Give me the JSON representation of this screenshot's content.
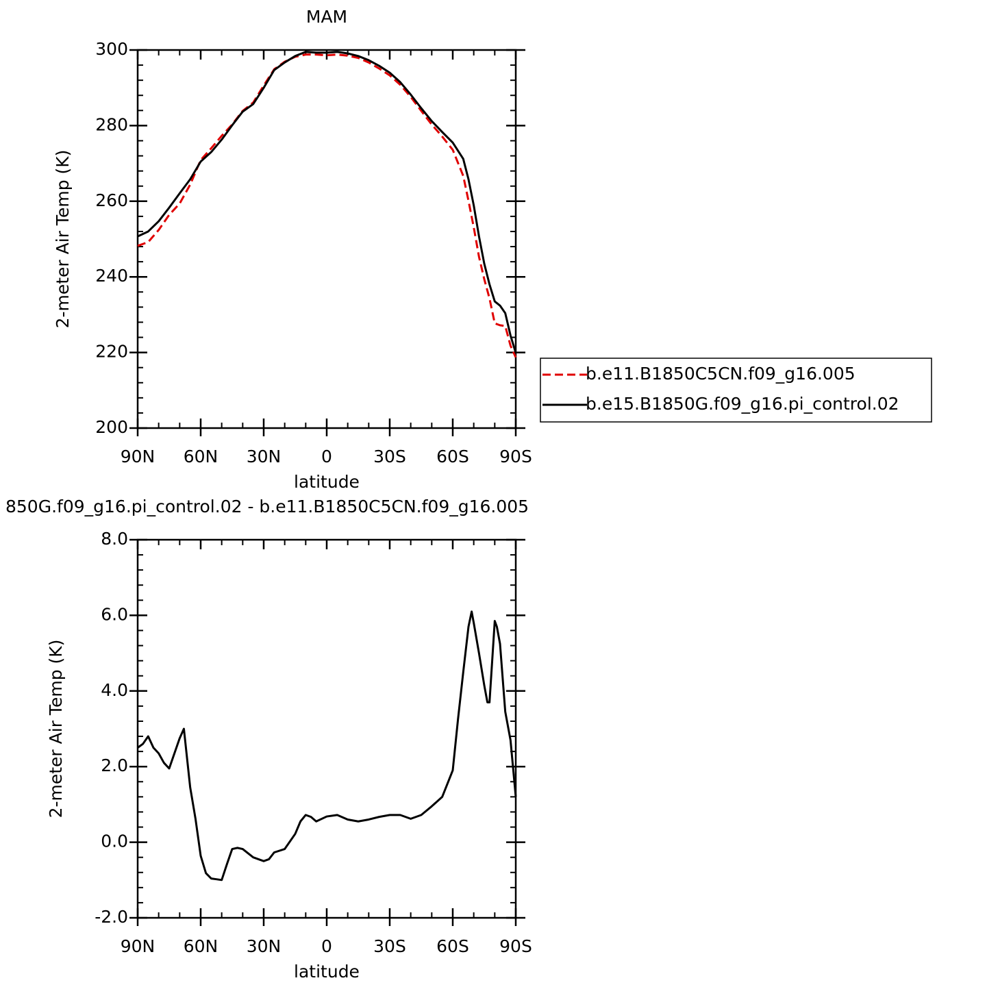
{
  "chart_data": [
    {
      "type": "line",
      "title": "MAM",
      "xlabel": "latitude",
      "ylabel": "2-meter Air Temp (K)",
      "x": [
        90,
        85,
        80,
        75,
        70,
        65,
        60,
        55,
        50,
        45,
        40,
        35,
        30,
        25,
        20,
        15,
        10,
        5,
        0,
        -5,
        -10,
        -15,
        -20,
        -25,
        -30,
        -35,
        -40,
        -45,
        -50,
        -55,
        -60,
        -65,
        -67.5,
        -70,
        -72.5,
        -75,
        -77.5,
        -80,
        -82.5,
        -85,
        -87.5,
        -90
      ],
      "series": [
        {
          "name": "b.e11.B1850C5CN.f09_g16.005",
          "color": "#e00000",
          "line_style": "dashed",
          "values": [
            248.2,
            249.2,
            252.4,
            256.4,
            259.4,
            264.4,
            270.9,
            274.0,
            277.3,
            280.3,
            283.9,
            286.1,
            290.6,
            294.9,
            296.9,
            298.2,
            298.8,
            298.8,
            298.6,
            298.8,
            298.5,
            297.9,
            296.7,
            295.1,
            293.3,
            290.8,
            287.6,
            283.9,
            280.3,
            277.1,
            273.6,
            266.7,
            260.1,
            253.1,
            245.3,
            239.4,
            234.3,
            227.7,
            227.2,
            227.0,
            221.8,
            218.7
          ]
        },
        {
          "name": "b.e15.B1850G.f09_g16.pi_control.02",
          "color": "#000000",
          "line_style": "solid",
          "values": [
            250.7,
            252.0,
            254.7,
            258.3,
            262.1,
            265.8,
            270.5,
            273.0,
            276.3,
            280.1,
            283.7,
            285.7,
            290.0,
            294.7,
            296.7,
            298.4,
            299.5,
            299.3,
            299.3,
            299.5,
            299.1,
            298.4,
            297.3,
            295.8,
            294.0,
            291.5,
            288.2,
            284.6,
            281.2,
            278.3,
            275.5,
            271.2,
            265.8,
            258.9,
            250.7,
            243.5,
            238.0,
            233.5,
            232.4,
            230.4,
            224.5,
            219.9
          ]
        }
      ],
      "xlim": [
        90,
        -90
      ],
      "xticks": [
        {
          "value": 90,
          "label": "90N"
        },
        {
          "value": 60,
          "label": "60N"
        },
        {
          "value": 30,
          "label": "30N"
        },
        0,
        {
          "value": -30,
          "label": "30S"
        },
        {
          "value": -60,
          "label": "60S"
        },
        {
          "value": -90,
          "label": "90S"
        }
      ],
      "ylim": [
        200,
        300
      ],
      "yticks": [
        200,
        220,
        240,
        260,
        280,
        300
      ],
      "legend": "right"
    },
    {
      "type": "line",
      "title": "850G.f09_g16.pi_control.02 - b.e11.B1850C5CN.f09_g16.005",
      "xlabel": "latitude",
      "ylabel": "2-meter Air Temp (K)",
      "x": [
        90,
        87.5,
        85,
        82.5,
        80,
        77.5,
        75,
        72.5,
        70,
        68,
        65,
        62.5,
        60,
        57.5,
        55,
        52.5,
        50,
        47.5,
        45,
        42.5,
        40,
        35,
        30,
        27.5,
        25,
        20,
        15,
        12.5,
        10,
        7.5,
        5,
        0,
        -5,
        -10,
        -15,
        -20,
        -25,
        -30,
        -35,
        -40,
        -45,
        -50,
        -55,
        -60,
        -62.5,
        -65,
        -67.5,
        -69,
        -70,
        -72.5,
        -75,
        -76.5,
        -77.5,
        -80,
        -81,
        -82.5,
        -85,
        -87.5,
        -90
      ],
      "color": "#000000",
      "values": [
        2.5,
        2.6,
        2.8,
        2.5,
        2.35,
        2.1,
        1.95,
        2.35,
        2.75,
        3.0,
        1.45,
        0.63,
        -0.36,
        -0.82,
        -0.96,
        -0.98,
        -1.0,
        -0.58,
        -0.18,
        -0.15,
        -0.18,
        -0.4,
        -0.5,
        -0.45,
        -0.27,
        -0.18,
        0.22,
        0.55,
        0.72,
        0.67,
        0.55,
        0.68,
        0.72,
        0.6,
        0.55,
        0.6,
        0.67,
        0.72,
        0.72,
        0.62,
        0.72,
        0.95,
        1.2,
        1.9,
        3.25,
        4.5,
        5.7,
        6.1,
        5.8,
        5.0,
        4.15,
        3.7,
        3.7,
        5.85,
        5.7,
        5.25,
        3.45,
        2.7,
        1.2
      ],
      "xlim": [
        90,
        -90
      ],
      "xticks": [
        {
          "value": 90,
          "label": "90N"
        },
        {
          "value": 60,
          "label": "60N"
        },
        {
          "value": 30,
          "label": "30N"
        },
        0,
        {
          "value": -30,
          "label": "30S"
        },
        {
          "value": -60,
          "label": "60S"
        },
        {
          "value": -90,
          "label": "90S"
        }
      ],
      "ylim": [
        -2,
        8
      ],
      "yticks": [
        {
          "value": -2,
          "label": "-2.0"
        },
        {
          "value": 0,
          "label": "0.0"
        },
        {
          "value": 2,
          "label": "2.0"
        },
        {
          "value": 4,
          "label": "4.0"
        },
        {
          "value": 6,
          "label": "6.0"
        },
        {
          "value": 8,
          "label": "8.0"
        }
      ]
    }
  ]
}
